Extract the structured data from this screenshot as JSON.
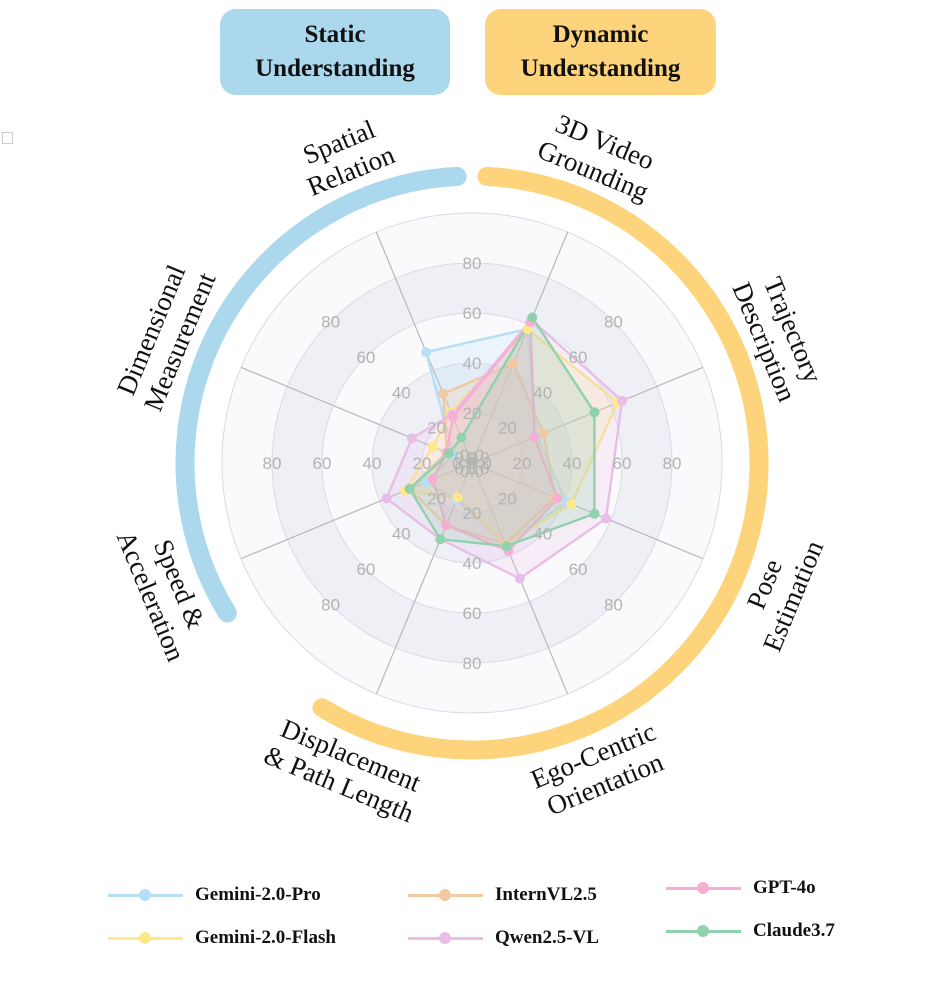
{
  "badges": {
    "static": {
      "line1": "Static",
      "line2": "Understanding",
      "color": "#acd8ee"
    },
    "dynamic": {
      "line1": "Dynamic",
      "line2": "Understanding",
      "color": "#fdd47b"
    }
  },
  "chart_data": {
    "type": "radar",
    "axes": [
      {
        "lines": [
          "3D Video",
          "Grounding"
        ],
        "group": "static"
      },
      {
        "lines": [
          "Trajectory",
          "Description"
        ],
        "group": "dynamic"
      },
      {
        "lines": [
          "Pose",
          "Estimation"
        ],
        "group": "dynamic"
      },
      {
        "lines": [
          "Ego-Centric",
          "Orientation"
        ],
        "group": "dynamic"
      },
      {
        "lines": [
          "Displacement",
          "& Path Length"
        ],
        "group": "dynamic"
      },
      {
        "lines": [
          "Speed &",
          "Acceleration"
        ],
        "group": "dynamic"
      },
      {
        "lines": [
          "Dimensional",
          "Measurement"
        ],
        "group": "static"
      },
      {
        "lines": [
          "Spatial",
          "Relation"
        ],
        "group": "static"
      }
    ],
    "rmax": 100,
    "rings": [
      20,
      40,
      60,
      80,
      100
    ],
    "tick_values": [
      0.0,
      20,
      40,
      60,
      80
    ],
    "series": [
      {
        "name": "Gemini-2.0-Pro",
        "color": "#b6def4",
        "values": [
          58,
          28,
          41,
          35,
          16,
          20,
          8,
          48
        ]
      },
      {
        "name": "Gemini-2.0-Flash",
        "color": "#fde88a",
        "values": [
          58,
          63,
          43,
          35,
          15,
          29,
          17,
          22
        ]
      },
      {
        "name": "InternVL2.5",
        "color": "#f2c9a0",
        "values": [
          43,
          31,
          36,
          35,
          27,
          27,
          11,
          30
        ]
      },
      {
        "name": "Qwen2.5-VL",
        "color": "#e8bde8",
        "values": [
          62,
          65,
          58,
          50,
          33,
          37,
          26,
          21
        ]
      },
      {
        "name": "GPT-4o",
        "color": "#f5afd3",
        "values": [
          61,
          27,
          37,
          38,
          27,
          17,
          11,
          20
        ]
      },
      {
        "name": "Claude3.7",
        "color": "#8fd2ad",
        "values": [
          63,
          53,
          53,
          36,
          33,
          27,
          10,
          11
        ]
      }
    ]
  }
}
